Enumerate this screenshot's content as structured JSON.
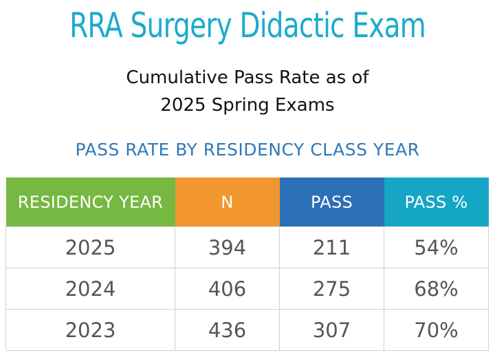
{
  "header": {
    "title": "RRA Surgery Didactic Exam",
    "subtitle_line1": "Cumulative Pass Rate as of",
    "subtitle_line2": "2025 Spring Exams",
    "section_heading": "PASS RATE BY RESIDENCY CLASS YEAR"
  },
  "table": {
    "columns": [
      "RESIDENCY YEAR",
      "N",
      "PASS",
      "PASS %"
    ],
    "column_colors": [
      "#77b843",
      "#f2962f",
      "#2b6fb6",
      "#15a6c6"
    ],
    "rows": [
      [
        "2025",
        "394",
        "211",
        "54%"
      ],
      [
        "2024",
        "406",
        "275",
        "68%"
      ],
      [
        "2023",
        "436",
        "307",
        "70%"
      ]
    ]
  },
  "colors": {
    "title": "#1aabcb",
    "section_heading": "#2f78b8",
    "cell_text": "#555555",
    "grid": "#d0d0d0"
  }
}
